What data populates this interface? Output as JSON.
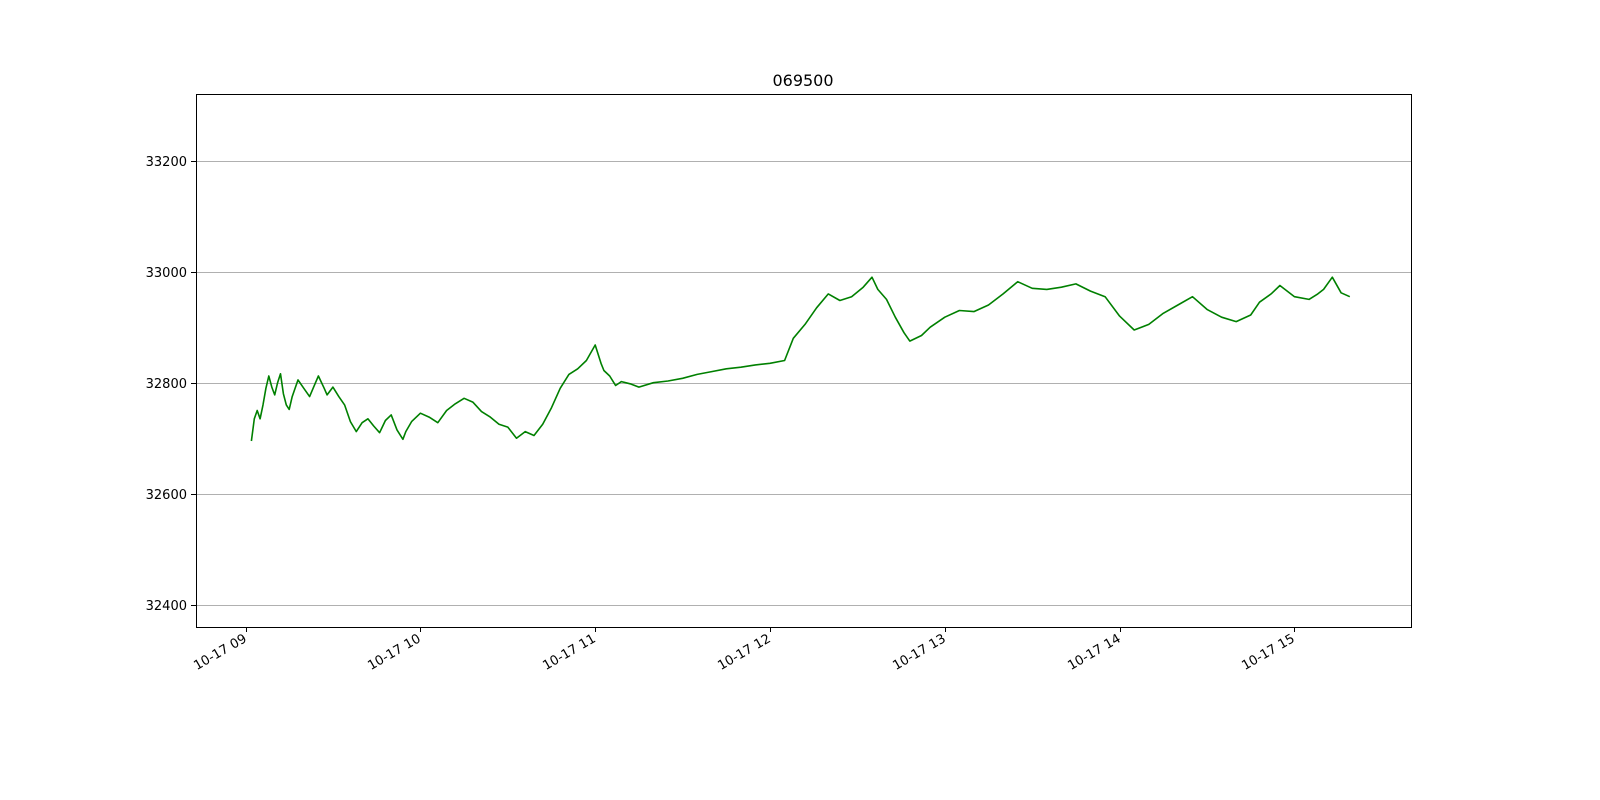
{
  "chart_data": {
    "type": "line",
    "title": "069500",
    "xlabel": "",
    "ylabel": "",
    "x_axis_type": "time",
    "date": "10-17",
    "x_tick_labels": [
      "10-17 09",
      "10-17 10",
      "10-17 11",
      "10-17 12",
      "10-17 13",
      "10-17 14",
      "10-17 15"
    ],
    "x_ticks": [
      "09:00",
      "10:00",
      "11:00",
      "12:00",
      "13:00",
      "14:00",
      "15:00"
    ],
    "xlim": [
      "08:43",
      "15:40"
    ],
    "ylim": [
      32360,
      33320
    ],
    "y_ticks": [
      32400,
      32600,
      32800,
      33000,
      33200
    ],
    "grid": "horizontal",
    "legend": "none",
    "colors": {
      "line": "#008000"
    },
    "series": [
      {
        "x": [
          "09:02",
          "09:03",
          "09:04",
          "09:05",
          "09:06",
          "09:07",
          "09:08",
          "09:09",
          "09:10",
          "09:11",
          "09:12",
          "09:13",
          "09:14",
          "09:15",
          "09:16",
          "09:18",
          "09:20",
          "09:22",
          "09:24",
          "09:25",
          "09:27",
          "09:28",
          "09:30",
          "09:32",
          "09:34",
          "09:36",
          "09:38",
          "09:40",
          "09:42",
          "09:44",
          "09:46",
          "09:48",
          "09:50",
          "09:52",
          "09:54",
          "09:55",
          "09:57",
          "10:00",
          "10:03",
          "10:06",
          "10:09",
          "10:12",
          "10:15",
          "10:18",
          "10:21",
          "10:24",
          "10:27",
          "10:30",
          "10:33",
          "10:36",
          "10:39",
          "10:42",
          "10:45",
          "10:48",
          "10:51",
          "10:54",
          "10:57",
          "11:00",
          "11:02",
          "11:03",
          "11:05",
          "11:07",
          "11:09",
          "11:12",
          "11:15",
          "11:20",
          "11:25",
          "11:30",
          "11:35",
          "11:40",
          "11:45",
          "11:50",
          "11:55",
          "12:00",
          "12:05",
          "12:08",
          "12:12",
          "12:16",
          "12:20",
          "12:24",
          "12:28",
          "12:32",
          "12:35",
          "12:37",
          "12:40",
          "12:43",
          "12:46",
          "12:48",
          "12:52",
          "12:55",
          "13:00",
          "13:05",
          "13:10",
          "13:15",
          "13:20",
          "13:25",
          "13:30",
          "13:35",
          "13:40",
          "13:45",
          "13:50",
          "13:55",
          "14:00",
          "14:05",
          "14:10",
          "14:15",
          "14:20",
          "14:25",
          "14:30",
          "14:35",
          "14:40",
          "14:45",
          "14:48",
          "14:52",
          "14:55",
          "15:00",
          "15:05",
          "15:08",
          "15:10",
          "15:13",
          "15:16",
          "15:19"
        ],
        "y": [
          32695,
          32735,
          32750,
          32735,
          32760,
          32790,
          32812,
          32792,
          32778,
          32800,
          32816,
          32780,
          32760,
          32752,
          32775,
          32805,
          32790,
          32775,
          32800,
          32812,
          32790,
          32778,
          32792,
          32775,
          32760,
          32730,
          32712,
          32728,
          32735,
          32722,
          32710,
          32732,
          32742,
          32715,
          32698,
          32712,
          32730,
          32745,
          32738,
          32728,
          32750,
          32762,
          32772,
          32765,
          32748,
          32738,
          32725,
          32720,
          32700,
          32712,
          32705,
          32725,
          32755,
          32790,
          32815,
          32825,
          32840,
          32868,
          32835,
          32822,
          32812,
          32795,
          32802,
          32798,
          32792,
          32800,
          32803,
          32808,
          32815,
          32820,
          32825,
          32828,
          32832,
          32835,
          32840,
          32880,
          32905,
          32935,
          32960,
          32948,
          32955,
          32972,
          32990,
          32968,
          32950,
          32918,
          32890,
          32875,
          32885,
          32900,
          32918,
          32930,
          32928,
          32940,
          32960,
          32982,
          32970,
          32968,
          32972,
          32978,
          32965,
          32955,
          32920,
          32895,
          32905,
          32925,
          32940,
          32955,
          32932,
          32918,
          32910,
          32922,
          32945,
          32960,
          32975,
          32955,
          32950,
          32960,
          32968,
          32990,
          32962,
          32955
        ]
      }
    ]
  }
}
